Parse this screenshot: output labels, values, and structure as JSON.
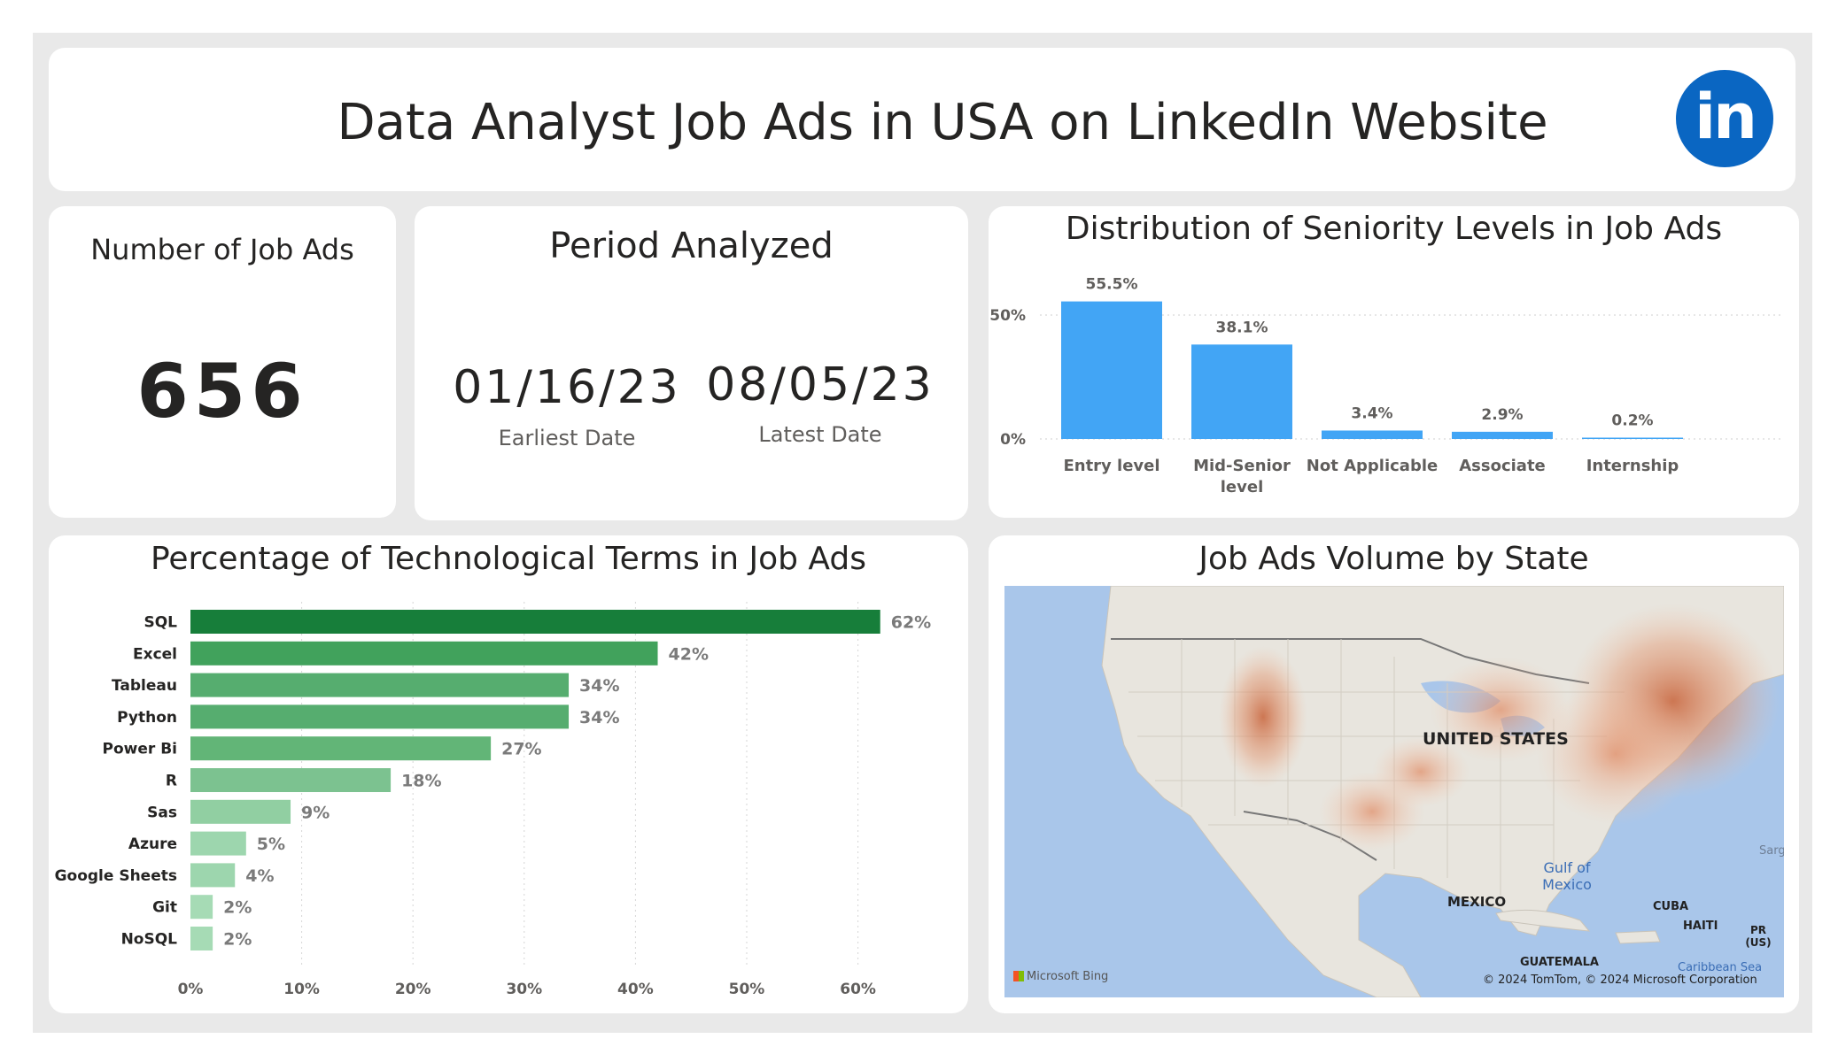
{
  "header": {
    "title": "Data Analyst Job Ads in USA on LinkedIn Website",
    "logo_text": "in",
    "logo_color": "#0a66c2"
  },
  "kpi": {
    "title": "Number of Job Ads",
    "value": "656"
  },
  "period": {
    "title": "Period Analyzed",
    "earliest": {
      "value": "01/16/23",
      "label": "Earliest Date"
    },
    "latest": {
      "value": "08/05/23",
      "label": "Latest Date"
    }
  },
  "seniority": {
    "title": "Distribution of Seniority Levels in Job Ads",
    "chart_data": {
      "type": "bar",
      "title": "Distribution of Seniority Levels in Job Ads",
      "categories": [
        "Entry level",
        "Mid-Senior level",
        "Not Applicable",
        "Associate",
        "Internship"
      ],
      "category_lines": [
        [
          "Entry level"
        ],
        [
          "Mid-Senior",
          "level"
        ],
        [
          "Not Applicable"
        ],
        [
          "Associate"
        ],
        [
          "Internship"
        ]
      ],
      "values": [
        55.5,
        38.1,
        3.4,
        2.9,
        0.2
      ],
      "data_labels": [
        "55.5%",
        "38.1%",
        "3.4%",
        "2.9%",
        "0.2%"
      ],
      "yticks": [
        "0%",
        "50%"
      ],
      "ylim": [
        0,
        60
      ],
      "grid": true,
      "color": "#42a5f5"
    }
  },
  "tech": {
    "title": "Percentage of Technological Terms in Job Ads",
    "chart_data": {
      "type": "bar",
      "orientation": "horizontal",
      "title": "Percentage of Technological Terms in Job Ads",
      "categories": [
        "SQL",
        "Excel",
        "Tableau",
        "Python",
        "Power Bi",
        "R",
        "Sas",
        "Azure",
        "Google Sheets",
        "Git",
        "NoSQL"
      ],
      "values": [
        62,
        42,
        34,
        34,
        27,
        18,
        9,
        5,
        4,
        2,
        2
      ],
      "data_labels": [
        "62%",
        "42%",
        "34%",
        "34%",
        "27%",
        "18%",
        "9%",
        "5%",
        "4%",
        "2%",
        "2%"
      ],
      "xticks": [
        "0%",
        "10%",
        "20%",
        "30%",
        "40%",
        "50%",
        "60%"
      ],
      "xlim": [
        0,
        65
      ],
      "grid": true,
      "colors": [
        "#177e3a",
        "#41a25c",
        "#56ad6f",
        "#56ad6f",
        "#62b577",
        "#7cc290",
        "#91cfa2",
        "#9dd6ae",
        "#9dd6ae",
        "#a6dbb5",
        "#a6dbb5"
      ]
    }
  },
  "map": {
    "title": "Job Ads Volume by State",
    "labels": {
      "country": "UNITED STATES",
      "mexico": "MEXICO",
      "gulf": "Gulf of Mexico",
      "cuba": "CUBA",
      "haiti": "HAITI",
      "pr": "PR (US)",
      "guatemala": "GUATEMALA",
      "caribbean": "Caribbean Sea",
      "sarg": "Sarg"
    },
    "bing": "Microsoft Bing",
    "credit": "© 2024 TomTom, © 2024 Microsoft Corporation"
  }
}
